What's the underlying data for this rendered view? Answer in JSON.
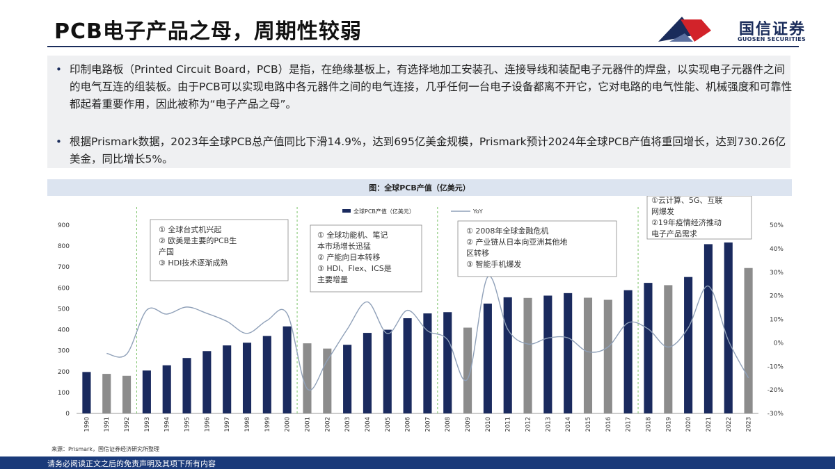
{
  "header": {
    "title": "PCB电子产品之母，周期性较弱",
    "logo_cn": "国信证券",
    "logo_en": "GUOSEN SECURITIES"
  },
  "summary": {
    "bullet1": "印制电路板（Printed Circuit Board，PCB）是指，在绝缘基板上，有选择地加工安装孔、连接导线和装配电子元器件的焊盘，以实现电子元器件之间的电气互连的组装板。由于PCB可以实现电路中各元器件之间的电气连接，几乎任何一台电子设备都离不开它，它对电路的电气性能、机械强度和可靠性都起着重要作用，因此被称为“电子产品之母”。",
    "bullet2": "根据Prismark数据，2023年全球PCB总产值同比下滑14.9%，达到695亿美金规模，Prismark预计2024年全球PCB产值将重回增长，达到730.26亿美金，同比增长5%。"
  },
  "chart_data": {
    "type": "bar",
    "title": "图：全球PCB产值（亿美元）",
    "categories": [
      "1990",
      "1991",
      "1992",
      "1993",
      "1994",
      "1995",
      "1996",
      "1997",
      "1998",
      "1999",
      "2000",
      "2001",
      "2002",
      "2003",
      "2004",
      "2005",
      "2006",
      "2007",
      "2008",
      "2009",
      "2010",
      "2011",
      "2012",
      "2013",
      "2014",
      "2015",
      "2016",
      "2017",
      "2018",
      "2019",
      "2020",
      "2021",
      "2022",
      "2023"
    ],
    "series": [
      {
        "name": "全球PCB产值（亿美元）",
        "type": "bar",
        "axis": "left",
        "values": [
          198,
          189,
          180,
          205,
          230,
          265,
          298,
          325,
          338,
          370,
          416,
          335,
          310,
          328,
          385,
          400,
          455,
          478,
          484,
          410,
          525,
          555,
          552,
          563,
          575,
          553,
          543,
          589,
          624,
          613,
          652,
          809,
          817,
          695
        ],
        "colors": [
          "#1a2a5e",
          "#8c8c8c",
          "#8c8c8c",
          "#1a2a5e",
          "#1a2a5e",
          "#1a2a5e",
          "#1a2a5e",
          "#1a2a5e",
          "#1a2a5e",
          "#1a2a5e",
          "#1a2a5e",
          "#8c8c8c",
          "#8c8c8c",
          "#1a2a5e",
          "#1a2a5e",
          "#1a2a5e",
          "#1a2a5e",
          "#1a2a5e",
          "#1a2a5e",
          "#8c8c8c",
          "#1a2a5e",
          "#1a2a5e",
          "#8c8c8c",
          "#1a2a5e",
          "#1a2a5e",
          "#8c8c8c",
          "#8c8c8c",
          "#1a2a5e",
          "#1a2a5e",
          "#8c8c8c",
          "#1a2a5e",
          "#1a2a5e",
          "#1a2a5e",
          "#8c8c8c"
        ]
      },
      {
        "name": "YoY",
        "type": "line",
        "axis": "right",
        "color": "#8fa0b8",
        "values": [
          null,
          -4.5,
          -4.8,
          13.9,
          12.2,
          15.2,
          12.5,
          9.1,
          4.0,
          9.5,
          12.4,
          -19.5,
          -7.5,
          5.8,
          17.4,
          3.9,
          13.8,
          5.1,
          1.3,
          -15.3,
          28.0,
          5.7,
          -0.5,
          2.0,
          2.1,
          -3.8,
          -1.8,
          8.5,
          5.9,
          -1.8,
          6.4,
          24.1,
          1.0,
          -14.9
        ]
      }
    ],
    "y_left": {
      "min": 0,
      "max": 900,
      "ticks": [
        0,
        100,
        200,
        300,
        400,
        500,
        600,
        700,
        800,
        900
      ]
    },
    "y_right": {
      "min": -30,
      "max": 50,
      "ticks": [
        "-30%",
        "-20%",
        "-10%",
        "0%",
        "10%",
        "20%",
        "30%",
        "40%",
        "50%"
      ]
    },
    "legend": {
      "position": "top-center",
      "labels": [
        "全球PCB产值（亿美元）",
        "YoY"
      ]
    },
    "phase_dividers_after": [
      "1992",
      "2000",
      "2007",
      "2017"
    ],
    "annotations": [
      {
        "label": "phase1",
        "lines": [
          "① 全球台式机兴起",
          "② 欧美是主要的PCB生",
          "产国",
          "③ HDI技术逐渐成熟"
        ]
      },
      {
        "label": "phase2",
        "lines": [
          "① 全球功能机、笔记",
          "本市场增长迅猛",
          "② 产能向日本转移",
          "③ HDI、Flex、ICS是",
          "主要增量"
        ]
      },
      {
        "label": "phase3",
        "lines": [
          "① 2008年全球金融危机",
          "② 产业链从日本向亚洲其他地",
          "区转移",
          "③ 智能手机爆发"
        ]
      },
      {
        "label": "phase4",
        "lines": [
          "①云计算、5G、互联",
          "网爆发",
          "②19年疫情经济推动",
          "电子产品需求"
        ]
      }
    ]
  },
  "source": "来源：Prismark，国信证券经济研究所整理",
  "footer": "请务必阅读正文之后的免责声明及其项下所有内容"
}
